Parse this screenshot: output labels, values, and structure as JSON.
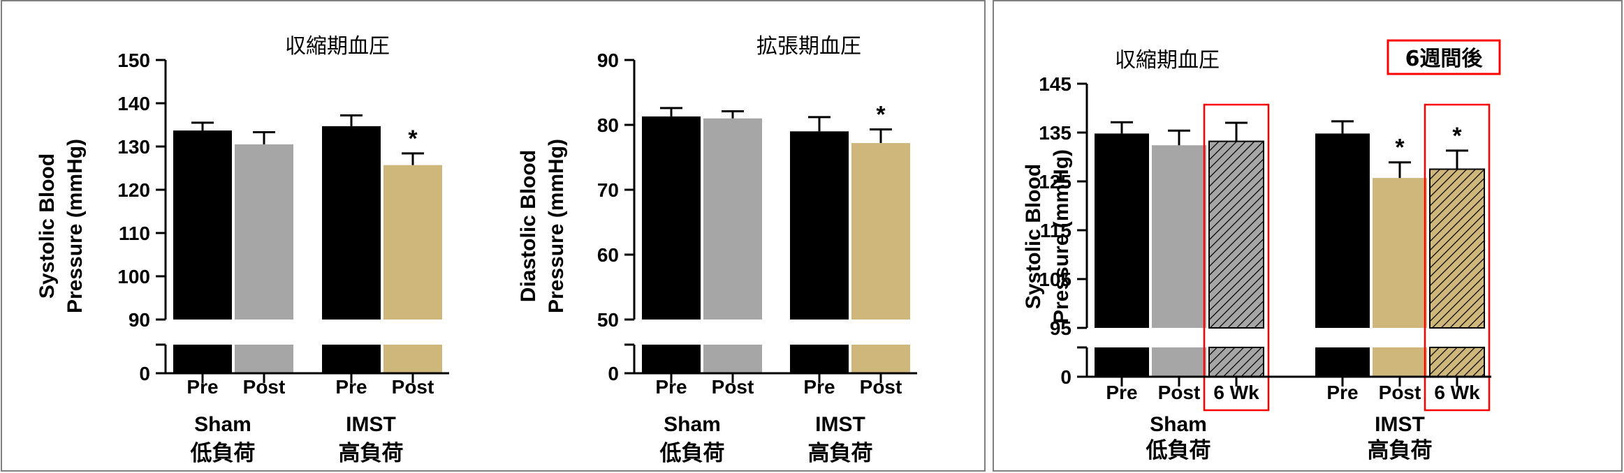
{
  "colors": {
    "pre": "#000000",
    "sham_post": "#a6a6a6",
    "imst_post": "#cfb77b",
    "highlight": "#ff0000",
    "frame": "#7f7f7f"
  },
  "chart_data": [
    {
      "type": "bar",
      "title": "収縮期血圧",
      "ylabel": [
        "Systolic Blood",
        "Pressure (mmHg)"
      ],
      "ylim": [
        90,
        150
      ],
      "yticks": [
        "90",
        "100",
        "110",
        "120",
        "130",
        "140",
        "150"
      ],
      "axis_break_label": "0",
      "groups": [
        {
          "name": "Sham",
          "name_ja": "低負荷",
          "bars": [
            {
              "label": "Pre",
              "value": 133.7,
              "error": 1.8,
              "color": "pre",
              "pattern": "solid",
              "star": ""
            },
            {
              "label": "Post",
              "value": 130.5,
              "error": 2.8,
              "color": "sham_post",
              "pattern": "solid",
              "star": ""
            }
          ]
        },
        {
          "name": "IMST",
          "name_ja": "高負荷",
          "bars": [
            {
              "label": "Pre",
              "value": 134.7,
              "error": 2.5,
              "color": "pre",
              "pattern": "solid",
              "star": ""
            },
            {
              "label": "Post",
              "value": 125.7,
              "error": 2.7,
              "color": "imst_post",
              "pattern": "solid",
              "star": "*"
            }
          ]
        }
      ]
    },
    {
      "type": "bar",
      "title": "拡張期血圧",
      "ylabel": [
        "Diastolic Blood",
        "Pressure (mmHg)"
      ],
      "ylim": [
        50,
        90
      ],
      "yticks": [
        "50",
        "60",
        "70",
        "80",
        "90"
      ],
      "axis_break_label": "0",
      "groups": [
        {
          "name": "Sham",
          "name_ja": "低負荷",
          "bars": [
            {
              "label": "Pre",
              "value": 81.3,
              "error": 1.3,
              "color": "pre",
              "pattern": "solid",
              "star": ""
            },
            {
              "label": "Post",
              "value": 81.0,
              "error": 1.1,
              "color": "sham_post",
              "pattern": "solid",
              "star": ""
            }
          ]
        },
        {
          "name": "IMST",
          "name_ja": "高負荷",
          "bars": [
            {
              "label": "Pre",
              "value": 79.0,
              "error": 2.2,
              "color": "pre",
              "pattern": "solid",
              "star": ""
            },
            {
              "label": "Post",
              "value": 77.2,
              "error": 2.1,
              "color": "imst_post",
              "pattern": "solid",
              "star": "*"
            }
          ]
        }
      ]
    },
    {
      "type": "bar",
      "title": "収縮期血圧",
      "badge": "6週間後",
      "ylabel": [
        "Systolic Blood",
        "Pressure (mmHg)"
      ],
      "ylim": [
        95,
        145
      ],
      "yticks": [
        "95",
        "105",
        "115",
        "125",
        "135",
        "145"
      ],
      "axis_break_label": "0",
      "groups": [
        {
          "name": "Sham",
          "name_ja": "低負荷",
          "bars": [
            {
              "label": "Pre",
              "value": 134.8,
              "error": 2.3,
              "color": "pre",
              "pattern": "solid",
              "star": "",
              "highlight": false
            },
            {
              "label": "Post",
              "value": 132.4,
              "error": 3.0,
              "color": "sham_post",
              "pattern": "solid",
              "star": "",
              "highlight": false
            },
            {
              "label": "6 Wk",
              "value": 133.2,
              "error": 3.8,
              "color": "sham_post",
              "pattern": "hatch",
              "star": "",
              "highlight": true
            }
          ]
        },
        {
          "name": "IMST",
          "name_ja": "高負荷",
          "bars": [
            {
              "label": "Pre",
              "value": 134.8,
              "error": 2.5,
              "color": "pre",
              "pattern": "solid",
              "star": "",
              "highlight": false
            },
            {
              "label": "Post",
              "value": 125.7,
              "error": 3.2,
              "color": "imst_post",
              "pattern": "solid",
              "star": "*",
              "highlight": false
            },
            {
              "label": "6 Wk",
              "value": 127.5,
              "error": 3.8,
              "color": "imst_post",
              "pattern": "hatch",
              "star": "*",
              "highlight": true
            }
          ]
        }
      ]
    }
  ]
}
